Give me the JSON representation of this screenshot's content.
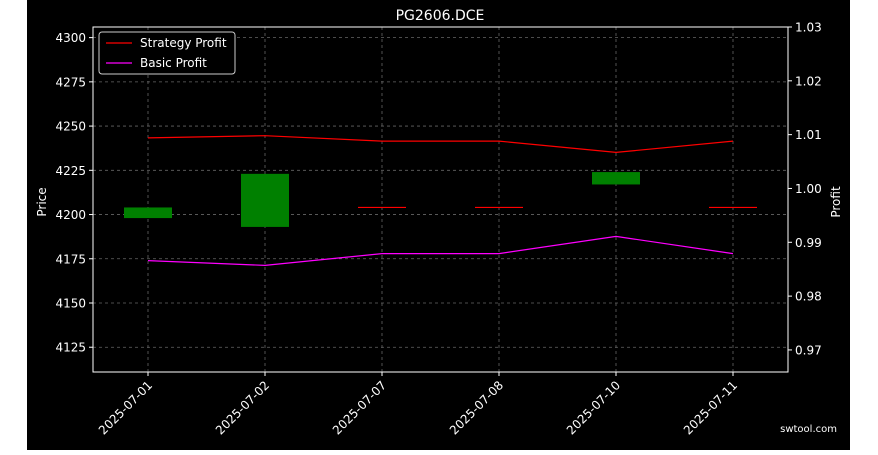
{
  "colors": {
    "background": "#000000",
    "outer_background": "#ffffff",
    "axes": "#ffffff",
    "grid": "#666666",
    "up_candle": "#008000",
    "strategy": "#ff0000",
    "basic": "#ff00ff"
  },
  "watermark": "swtool.com",
  "chart_data": {
    "type": "candlestick",
    "title": "PG2606.DCE",
    "ylabel_left": "Price",
    "ylabel_right": "Profit",
    "categories": [
      "2025-07-01",
      "2025-07-02",
      "2025-07-07",
      "2025-07-08",
      "2025-07-10",
      "2025-07-11"
    ],
    "ohlc": [
      {
        "date": "2025-07-01",
        "open": 4198,
        "high": 4204,
        "low": 4198,
        "close": 4204
      },
      {
        "date": "2025-07-02",
        "open": 4193,
        "high": 4223,
        "low": 4193,
        "close": 4223
      },
      {
        "date": "2025-07-07",
        "open": 4204,
        "high": 4204,
        "low": 4204,
        "close": 4204
      },
      {
        "date": "2025-07-08",
        "open": 4204,
        "high": 4204,
        "low": 4204,
        "close": 4204
      },
      {
        "date": "2025-07-10",
        "open": 4217,
        "high": 4224,
        "low": 4217,
        "close": 4224
      },
      {
        "date": "2025-07-11",
        "open": 4204,
        "high": 4204,
        "low": 4204,
        "close": 4204
      }
    ],
    "y_left": {
      "min": 4111,
      "max": 4306,
      "ticks": [
        4125,
        4150,
        4175,
        4200,
        4225,
        4250,
        4275,
        4300
      ]
    },
    "y_right": {
      "min": 0.9659,
      "max": 1.03,
      "ticks": [
        0.97,
        0.98,
        0.99,
        1.0,
        1.01,
        1.02,
        1.03
      ],
      "tick_labels": [
        "0.97",
        "0.98",
        "0.99",
        "1.00",
        "1.01",
        "1.02",
        "1.03"
      ]
    },
    "series": [
      {
        "name": "Strategy Profit",
        "color": "#ff0000",
        "values": [
          1.0094,
          1.0098,
          1.0088,
          1.0088,
          1.0067,
          1.0088
        ]
      },
      {
        "name": "Basic Profit",
        "color": "#ff00ff",
        "values": [
          0.9866,
          0.9857,
          0.9879,
          0.9879,
          0.9911,
          0.9879
        ]
      }
    ],
    "legend": {
      "position": "top-left"
    },
    "grid": true
  }
}
